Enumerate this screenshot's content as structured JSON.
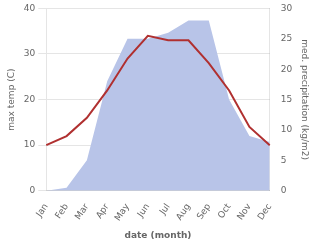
{
  "chart_data": {
    "type": "line",
    "xlabel": "date (month)",
    "ylabel": "max temp (C)",
    "y2label": "med. precipitation (kg/m2)",
    "categories": [
      "Jan",
      "Feb",
      "Mar",
      "Apr",
      "May",
      "Jun",
      "Jul",
      "Aug",
      "Sep",
      "Oct",
      "Nov",
      "Dec"
    ],
    "series": [
      {
        "type": "area",
        "axis": "y2",
        "color": "#b8c4e8",
        "values": [
          0,
          0.5,
          5,
          18,
          25,
          25,
          26,
          28,
          28,
          15,
          9,
          8
        ]
      },
      {
        "type": "line",
        "color": "#b03030",
        "values": [
          10,
          12,
          16,
          22,
          29,
          34,
          33,
          33,
          28,
          22,
          14,
          10
        ]
      }
    ],
    "ylim": [
      0,
      40
    ],
    "yticks": [
      0,
      10,
      20,
      30,
      40
    ],
    "y2lim": [
      0,
      30
    ],
    "y2ticks": [
      0,
      5,
      10,
      15,
      20,
      25,
      30
    ],
    "grid": true
  }
}
